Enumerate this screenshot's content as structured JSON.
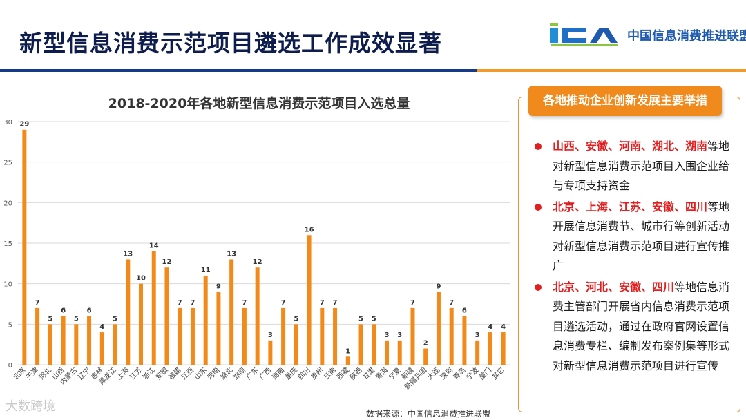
{
  "header": {
    "title": "新型信息消费示范项目遴选工作成效显著",
    "logo_mark": "ICA",
    "logo_text": "中国信息消费推进联盟"
  },
  "colors": {
    "bar": "#f28a1a",
    "accent": "#f08a1d",
    "navy": "#153a8a",
    "highlight": "#e02020"
  },
  "panel": {
    "title": "各地推动企业创新发展主要举措",
    "bullets": [
      {
        "highlight": "山西、安徽、河南、湖北、湖南",
        "text": "等地对新型信息消费示范项目入围企业给与专项支持资金"
      },
      {
        "highlight": "北京、上海、江苏、安徽、四川",
        "text": "等地开展信息消费节、城市行等创新活动对新型信息消费示范项目进行宣传推广"
      },
      {
        "highlight": "北京、河北、安徽、四川",
        "text": "等地信息消费主管部门开展省内信息消费示范项目遴选活动，通过在政府官网设置信息消费专栏、编制发布案例集等形式对新型信息消费示范项目进行宣传"
      }
    ]
  },
  "source": "数据来源：中国信息消费推进联盟",
  "watermark": "大数跨境",
  "chart_data": {
    "type": "bar",
    "title": "2018-2020年各地新型信息消费示范项目入选总量",
    "categories": [
      "北京",
      "天津",
      "河北",
      "山西",
      "内蒙古",
      "辽宁",
      "吉林",
      "黑龙江",
      "上海",
      "江苏",
      "浙江",
      "安徽",
      "福建",
      "江西",
      "山东",
      "河南",
      "湖北",
      "湖南",
      "广东",
      "广西",
      "海南",
      "重庆",
      "四川",
      "贵州",
      "云南",
      "西藏",
      "陕西",
      "甘肃",
      "青海",
      "宁夏",
      "新疆",
      "新疆兵团",
      "大连",
      "深圳",
      "青岛",
      "宁波",
      "厦门",
      "其它"
    ],
    "values": [
      29,
      7,
      5,
      6,
      5,
      6,
      4,
      5,
      13,
      10,
      14,
      12,
      7,
      7,
      11,
      9,
      13,
      7,
      12,
      3,
      7,
      5,
      16,
      7,
      7,
      1,
      5,
      5,
      3,
      3,
      7,
      2,
      9,
      7,
      6,
      3,
      4,
      4
    ],
    "yticks": [
      0,
      5,
      10,
      15,
      20,
      25,
      30
    ],
    "ylim": [
      0,
      30
    ],
    "grid": true,
    "xlabel": "",
    "ylabel": ""
  }
}
